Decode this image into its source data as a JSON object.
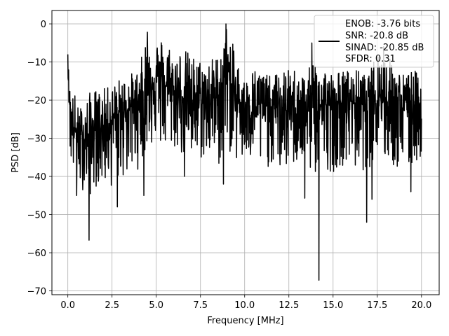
{
  "chart_data": {
    "type": "line",
    "xlabel": "Frequency [MHz]",
    "ylabel": "PSD [dB]",
    "xlim": [
      -0.9,
      21
    ],
    "ylim": [
      -71,
      3.5
    ],
    "xticks": [
      0,
      2.5,
      5,
      7.5,
      10,
      12.5,
      15,
      17.5,
      20
    ],
    "xtick_labels": [
      "0.0",
      "2.5",
      "5.0",
      "7.5",
      "10.0",
      "12.5",
      "15.0",
      "17.5",
      "20.0"
    ],
    "yticks": [
      0,
      -10,
      -20,
      -30,
      -40,
      -50,
      -60,
      -70
    ],
    "ytick_labels": [
      "0",
      "−10",
      "−20",
      "−30",
      "−40",
      "−50",
      "−60",
      "−70"
    ],
    "grid": true,
    "legend": {
      "placement": "upper right",
      "lines": [
        "ENOB: -3.76 bits",
        "SNR: -20.8 dB",
        "SINAD: -20.85 dB",
        "SFDR: 0.31"
      ]
    },
    "series": [
      {
        "color": "#000000",
        "x": [
          0,
          0.05,
          0.1,
          0.2,
          0.4,
          0.6,
          0.8,
          1.0,
          1.2,
          1.5,
          2.0,
          2.5,
          3.0,
          3.5,
          4.0,
          4.5,
          5.0,
          5.5,
          6.0,
          6.5,
          7.0,
          7.5,
          8.0,
          8.5,
          9.0,
          9.5,
          10.0,
          10.5,
          11.0,
          11.5,
          12.0,
          12.5,
          13.0,
          13.5,
          14.0,
          14.5,
          15.0,
          15.5,
          16.0,
          16.5,
          17.0,
          17.5,
          18.0,
          18.5,
          19.0,
          19.5,
          20.0
        ],
        "center": [
          -9,
          -16,
          -20,
          -25,
          -28,
          -30,
          -30,
          -30,
          -29,
          -28,
          -27,
          -25,
          -23,
          -22,
          -20,
          -15,
          -14,
          -16,
          -18,
          -19,
          -20,
          -21,
          -20,
          -19,
          -12,
          -20,
          -21,
          -22,
          -21,
          -22,
          -22,
          -23,
          -22,
          -21,
          -22,
          -21,
          -22,
          -21,
          -20,
          -21,
          -20,
          -18,
          -20,
          -21,
          -22,
          -21,
          -21
        ],
        "top": [
          -8,
          -12,
          -16,
          -18,
          -18,
          -22,
          -21,
          -20,
          -18,
          -17,
          -17,
          -16,
          -14,
          -13,
          -12,
          -2,
          -4,
          -3,
          -7,
          -6,
          -8,
          -9,
          -9,
          -8,
          0,
          -8,
          -15,
          -11,
          -12,
          -14,
          -12,
          -12,
          -11,
          -14,
          -6,
          -11,
          -13,
          -12,
          -12,
          -12,
          -14,
          -6,
          -8,
          -10,
          -13,
          -12,
          -13
        ],
        "bottom": [
          -12,
          -20,
          -35,
          -38,
          -41,
          -43,
          -44,
          -42,
          -46,
          -43,
          -42,
          -43,
          -41,
          -40,
          -38,
          -33,
          -31,
          -34,
          -33,
          -35,
          -37,
          -36,
          -35,
          -38,
          -33,
          -36,
          -38,
          -36,
          -39,
          -37,
          -39,
          -38,
          -37,
          -39,
          -40,
          -38,
          -39,
          -37,
          -38,
          -39,
          -38,
          -35,
          -37,
          -38,
          -40,
          -38,
          -35
        ],
        "spikes": [
          {
            "x": 1.2,
            "y": -56.7
          },
          {
            "x": 0.5,
            "y": -45.0
          },
          {
            "x": 2.8,
            "y": -48.0
          },
          {
            "x": 4.3,
            "y": -45.0
          },
          {
            "x": 6.6,
            "y": -40.0
          },
          {
            "x": 8.8,
            "y": -42.0
          },
          {
            "x": 13.4,
            "y": -45.7
          },
          {
            "x": 14.2,
            "y": -67.2
          },
          {
            "x": 16.9,
            "y": -52.0
          },
          {
            "x": 17.2,
            "y": -46.0
          },
          {
            "x": 19.4,
            "y": -44.0
          }
        ],
        "peaks": [
          {
            "x": 0.0,
            "y": -8.0
          },
          {
            "x": 4.5,
            "y": -2.2
          },
          {
            "x": 8.95,
            "y": 0.0
          },
          {
            "x": 13.8,
            "y": -5.0
          },
          {
            "x": 17.85,
            "y": -6.0
          }
        ]
      }
    ]
  }
}
